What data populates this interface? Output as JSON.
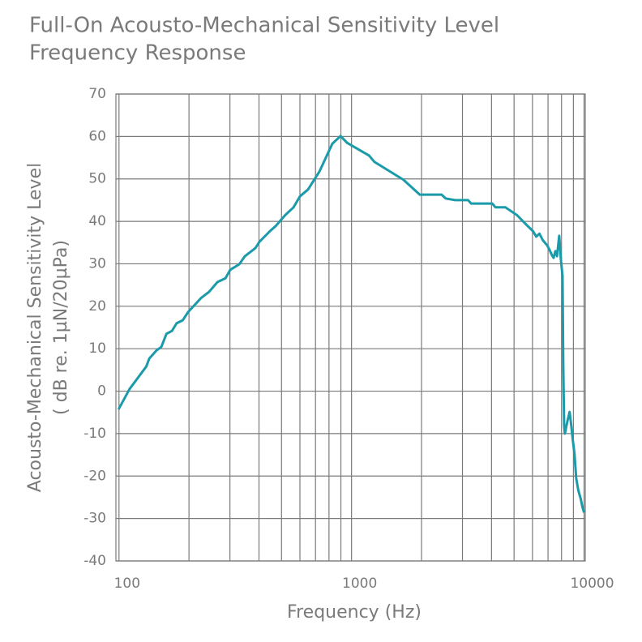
{
  "chart_data": {
    "type": "line",
    "title": [
      "Full-On Acousto-Mechanical Sensitivity Level",
      "Frequency Response"
    ],
    "xlabel": "Frequency (Hz)",
    "ylabel": [
      "Acousto-Mechanical Sensitivity Level",
      "( dB re. 1µN/20µPa)"
    ],
    "x_log": true,
    "xlim": [
      97,
      10120
    ],
    "xticks": [
      100,
      1000,
      10000
    ],
    "x_minor_grid": [
      200,
      300,
      400,
      500,
      600,
      700,
      800,
      900,
      2000,
      3000,
      4000,
      5000,
      6000,
      7000,
      8000,
      9000
    ],
    "ylim": [
      -40,
      70
    ],
    "yticks": [
      -40,
      -30,
      -20,
      -10,
      0,
      10,
      20,
      30,
      40,
      50,
      60,
      70
    ],
    "grid": true,
    "color": "#1b9aaa",
    "x": [
      99.5,
      111,
      120,
      131,
      135,
      145,
      152,
      160,
      169,
      177,
      188,
      198,
      225,
      244,
      265,
      287,
      301,
      329,
      348,
      386,
      402,
      446,
      472,
      519,
      563,
      600,
      650,
      727,
      827,
      897,
      957,
      1190,
      1255,
      1672,
      1965,
      2440,
      2540,
      2790,
      3170,
      3270,
      4030,
      4160,
      4590,
      5140,
      5650,
      6030,
      6230,
      6430,
      6640,
      6950,
      7105,
      7280,
      7396,
      7530,
      7650,
      7760,
      7820,
      7950,
      8080,
      8140,
      8210,
      8270,
      8470,
      8670,
      8810,
      8950,
      9100,
      9250,
      9450,
      9670,
      9830,
      10000
    ],
    "values": [
      -4.3,
      0.5,
      3,
      5.8,
      7.7,
      9.6,
      10.4,
      13.5,
      14.2,
      16,
      16.7,
      18.6,
      21.9,
      23.4,
      25.7,
      26.6,
      28.6,
      29.9,
      31.8,
      33.7,
      35.2,
      37.7,
      38.9,
      41.5,
      43.3,
      45.9,
      47.5,
      51.7,
      58.3,
      60.1,
      58.5,
      55.5,
      54,
      49.8,
      46.3,
      46.3,
      45.4,
      45,
      45,
      44.2,
      44.2,
      43.3,
      43.3,
      41.5,
      39.2,
      37.7,
      36.4,
      37.1,
      35.6,
      34.3,
      33.3,
      32,
      31.4,
      33,
      31.8,
      34.9,
      36.6,
      31,
      27.2,
      6.2,
      -8.1,
      -10,
      -7.2,
      -4.9,
      -8.1,
      -11.6,
      -14.8,
      -20.5,
      -23.4,
      -25.3,
      -27.2,
      -28.6
    ]
  }
}
